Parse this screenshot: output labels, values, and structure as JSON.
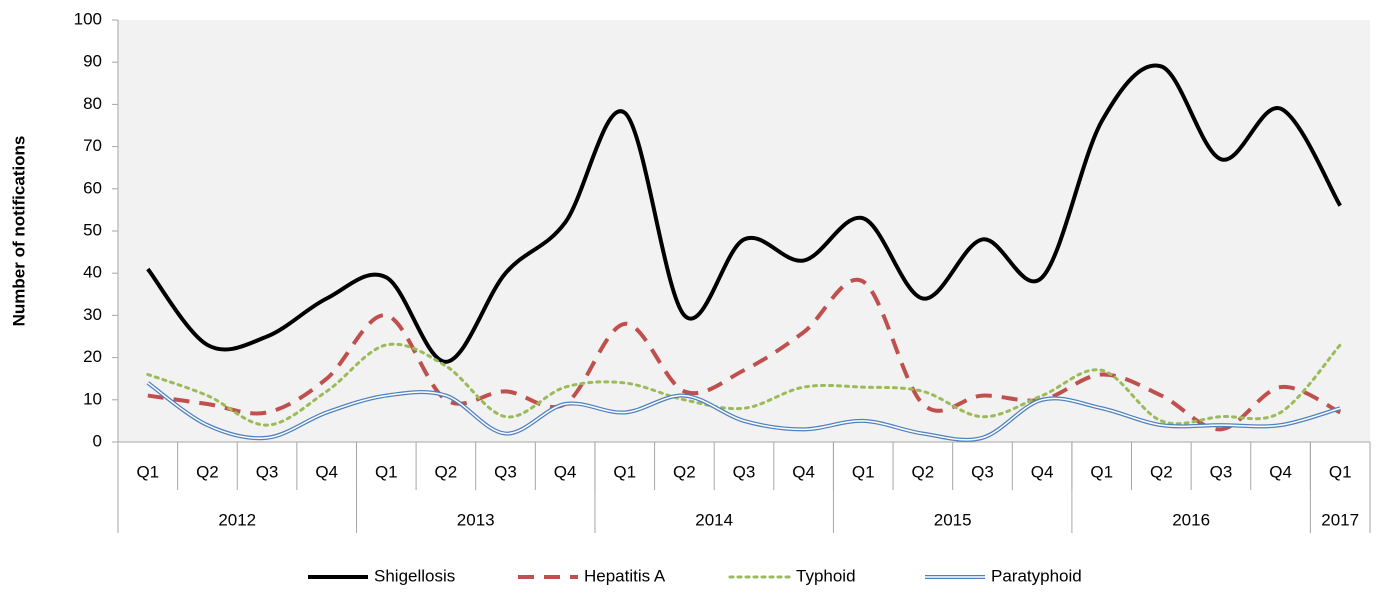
{
  "chart_data": {
    "type": "line",
    "y_label": "Number of notifications",
    "categories": [
      "Q1",
      "Q2",
      "Q3",
      "Q4",
      "Q1",
      "Q2",
      "Q3",
      "Q4",
      "Q1",
      "Q2",
      "Q3",
      "Q4",
      "Q1",
      "Q2",
      "Q3",
      "Q4",
      "Q1",
      "Q2",
      "Q3",
      "Q4",
      "Q1"
    ],
    "category_groups": [
      {
        "label": "2012",
        "count": 4
      },
      {
        "label": "2013",
        "count": 4
      },
      {
        "label": "2014",
        "count": 4
      },
      {
        "label": "2015",
        "count": 4
      },
      {
        "label": "2016",
        "count": 4
      },
      {
        "label": "2017",
        "count": 1
      }
    ],
    "ylim": [
      0,
      100
    ],
    "yticks": [
      0,
      10,
      20,
      30,
      40,
      50,
      60,
      70,
      80,
      90,
      100
    ],
    "legend": "bottom",
    "smooth": true,
    "series": [
      {
        "name": "Shigellosis",
        "color": "#000000",
        "line_style": "solid",
        "values": [
          41,
          23,
          25,
          34,
          39,
          19,
          40,
          52,
          78,
          30,
          48,
          43,
          53,
          34,
          48,
          39,
          76,
          89,
          67,
          79,
          56
        ]
      },
      {
        "name": "Hepatitis A",
        "color": "#c0504d",
        "line_style": "dashed",
        "values": [
          11,
          9,
          7,
          15,
          30,
          10,
          12,
          9,
          28,
          12,
          17,
          26,
          38,
          9,
          11,
          10,
          16,
          11,
          3,
          13,
          7
        ]
      },
      {
        "name": "Typhoid",
        "color": "#9bbb59",
        "line_style": "dotted",
        "values": [
          16,
          11,
          4,
          12,
          23,
          18,
          6,
          13,
          14,
          10,
          8,
          13,
          13,
          12,
          6,
          11,
          17,
          5,
          6,
          7,
          23
        ]
      },
      {
        "name": "Paratyphoid",
        "color": "#4f81bd",
        "line_style": "double",
        "values": [
          14,
          4,
          1,
          7,
          11,
          11,
          2,
          9,
          7,
          11,
          5,
          3,
          5,
          2,
          1,
          10,
          8,
          4,
          4,
          4,
          8
        ]
      }
    ]
  }
}
